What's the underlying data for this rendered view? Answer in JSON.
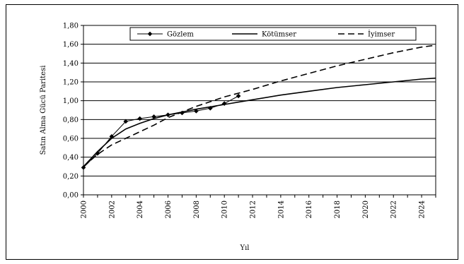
{
  "chart_data": {
    "type": "line",
    "title": "",
    "xlabel": "Yıl",
    "ylabel": "Satın Alma Gücü Paritesi",
    "xlim": [
      2000,
      2025
    ],
    "ylim": [
      0,
      1.8
    ],
    "grid": true,
    "legend_position": "top",
    "x_ticks": [
      2000,
      2002,
      2004,
      2006,
      2008,
      2010,
      2012,
      2014,
      2016,
      2018,
      2020,
      2022,
      2024
    ],
    "x_tick_labels": [
      "2000",
      "2002",
      "2004",
      "2006",
      "2008",
      "2010",
      "2012",
      "2014",
      "2016",
      "2018",
      "2020",
      "2022",
      "2024"
    ],
    "y_ticks": [
      0,
      0.2,
      0.4,
      0.6,
      0.8,
      1.0,
      1.2,
      1.4,
      1.6,
      1.8
    ],
    "y_tick_labels": [
      "0,00",
      "0,20",
      "0,40",
      "0,60",
      "0,80",
      "1,00",
      "1,20",
      "1,40",
      "1,60",
      "1,80"
    ],
    "series": [
      {
        "name": "Gözlem",
        "style": "solid-markers",
        "color": "#000000",
        "x": [
          2000,
          2001,
          2002,
          2003,
          2004,
          2005,
          2006,
          2007,
          2008,
          2009,
          2010,
          2011
        ],
        "values": [
          0.29,
          0.44,
          0.62,
          0.78,
          0.81,
          0.83,
          0.85,
          0.87,
          0.89,
          0.92,
          0.97,
          1.05
        ]
      },
      {
        "name": "Kötümser",
        "style": "solid",
        "color": "#000000",
        "x": [
          2000,
          2001,
          2002,
          2003,
          2004,
          2005,
          2006,
          2008,
          2010,
          2012,
          2014,
          2016,
          2018,
          2020,
          2022,
          2024,
          2025
        ],
        "values": [
          0.3,
          0.46,
          0.6,
          0.7,
          0.76,
          0.81,
          0.85,
          0.91,
          0.96,
          1.01,
          1.06,
          1.1,
          1.14,
          1.17,
          1.2,
          1.23,
          1.24
        ]
      },
      {
        "name": "İyimser",
        "style": "dashed",
        "color": "#000000",
        "x": [
          2000,
          2001,
          2002,
          2003,
          2004,
          2005,
          2006,
          2008,
          2010,
          2012,
          2014,
          2016,
          2018,
          2020,
          2022,
          2024,
          2025
        ],
        "values": [
          0.3,
          0.43,
          0.53,
          0.6,
          0.67,
          0.74,
          0.82,
          0.94,
          1.04,
          1.12,
          1.21,
          1.29,
          1.37,
          1.44,
          1.51,
          1.57,
          1.59
        ]
      }
    ]
  }
}
